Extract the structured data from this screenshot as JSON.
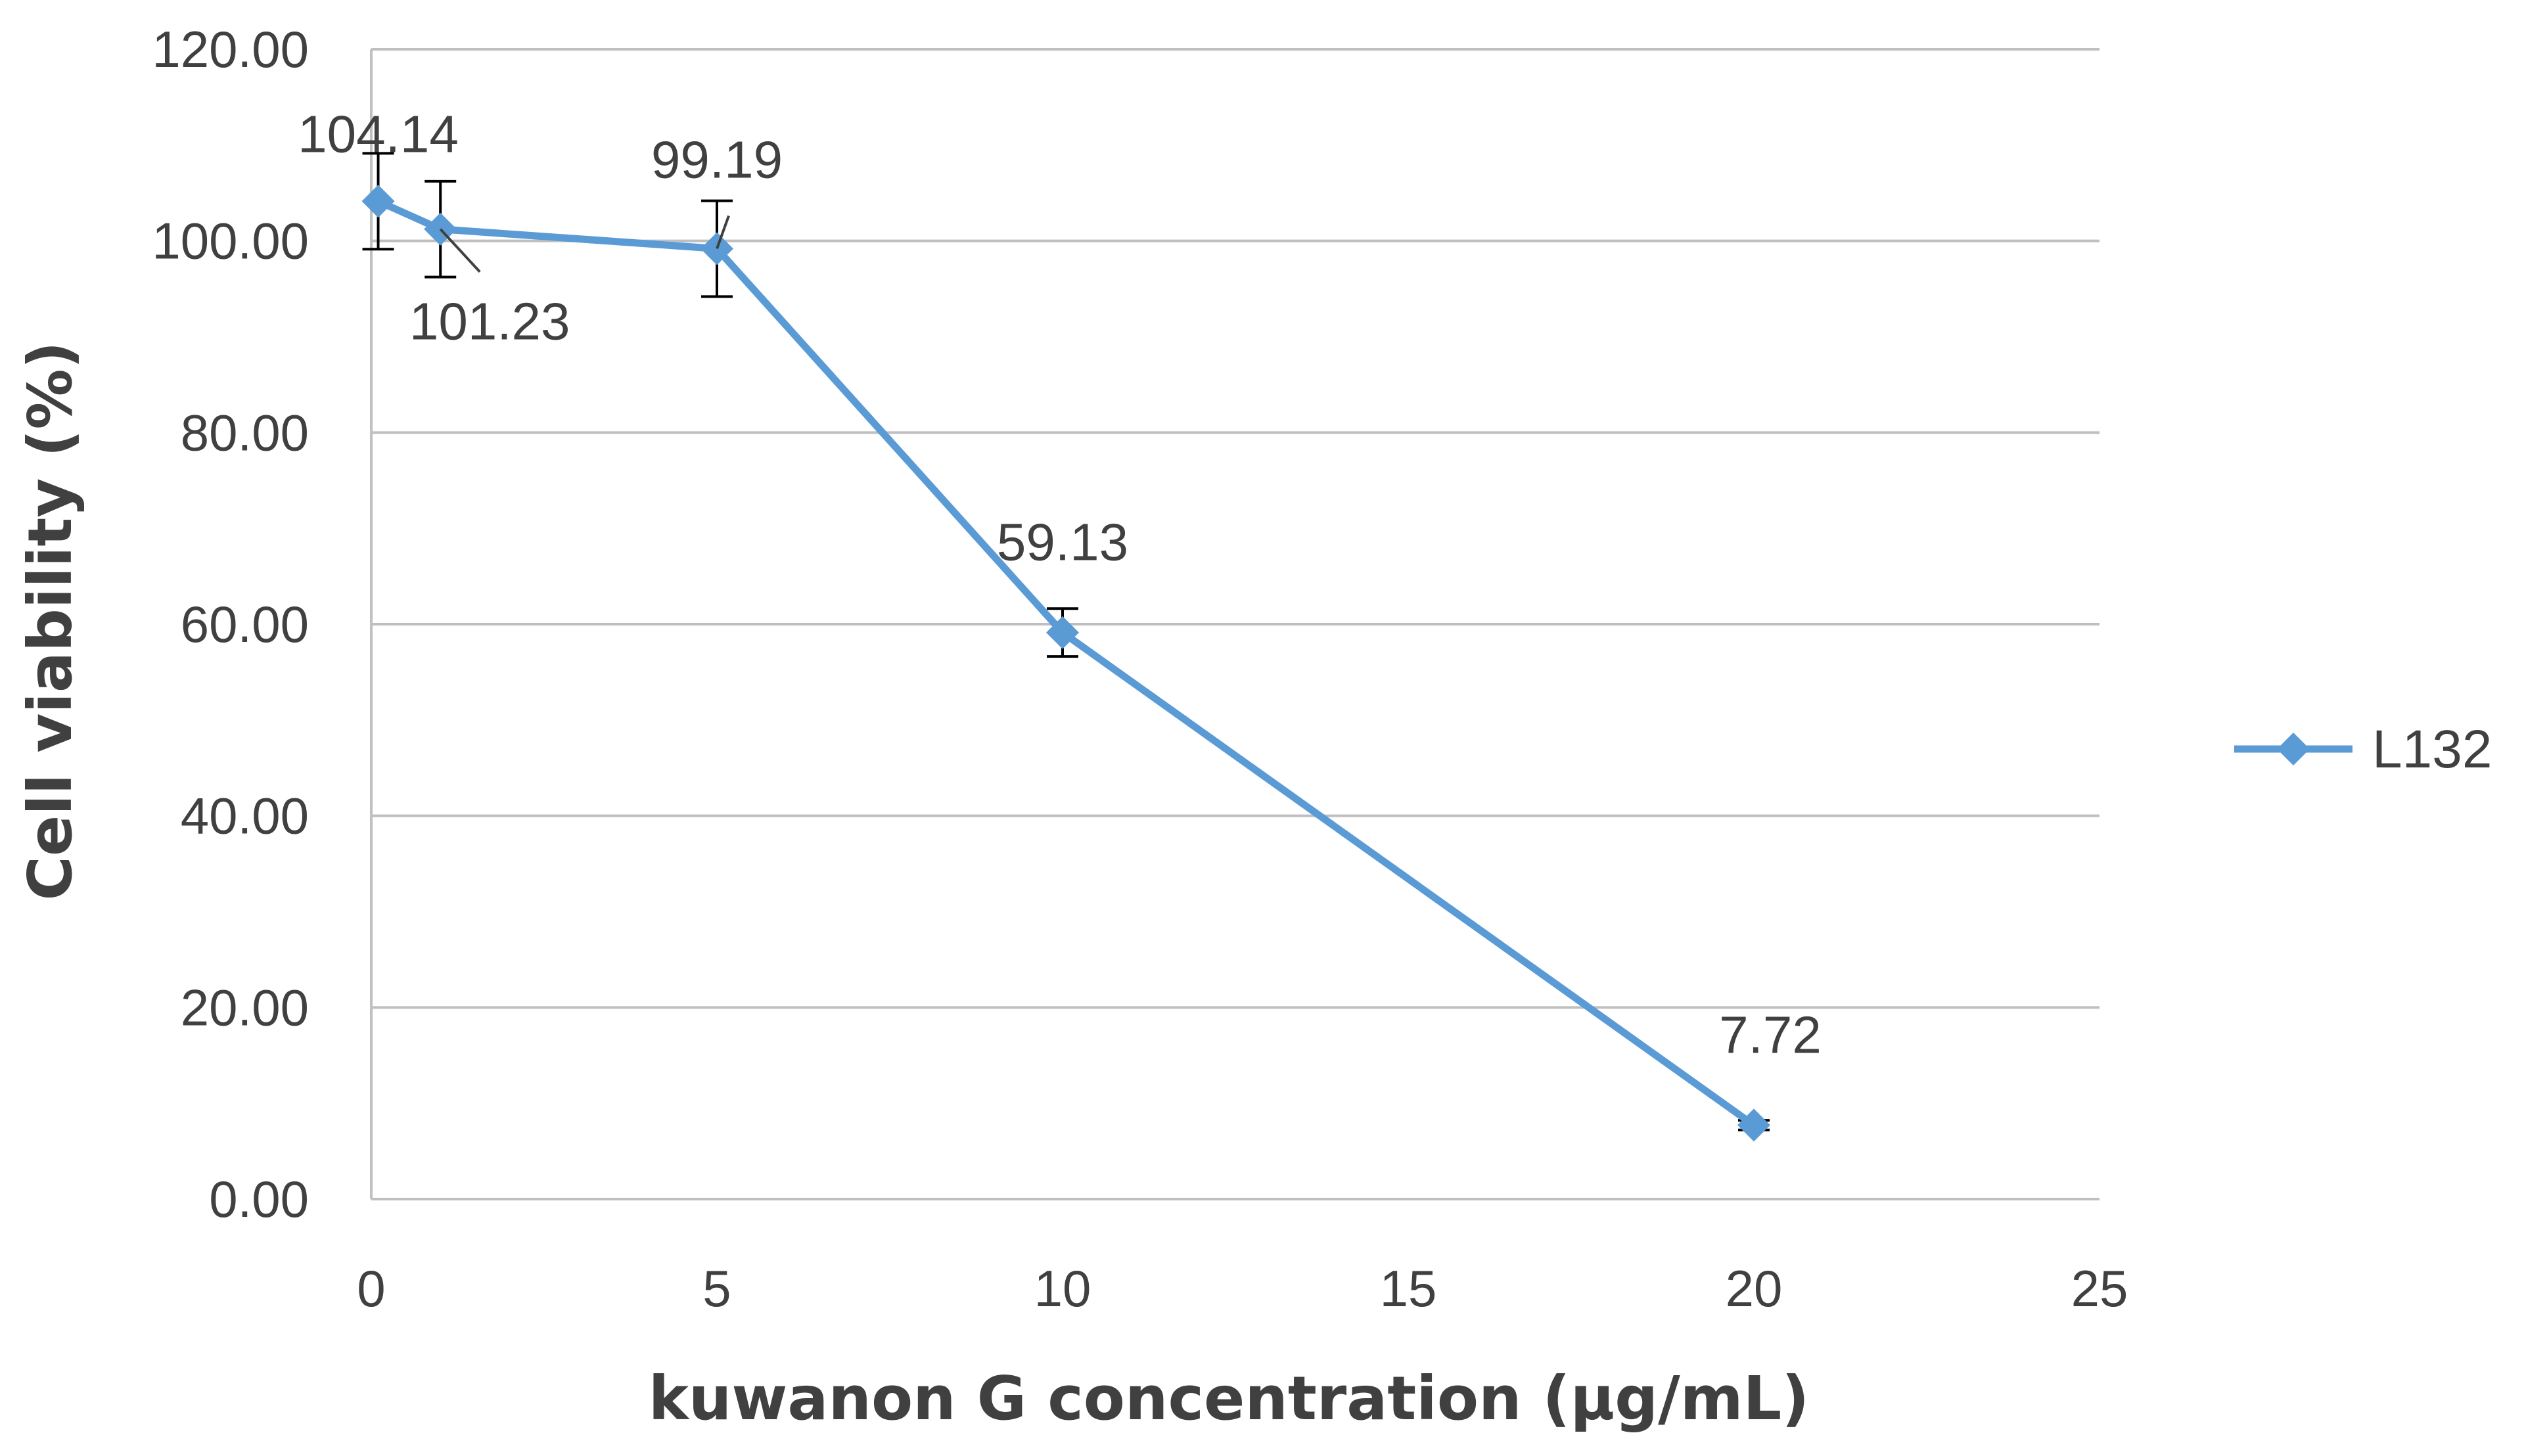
{
  "chart_data": {
    "type": "line",
    "xlabel": "kuwanon G concentration (µg/mL)",
    "ylabel": "Cell viability (%)",
    "xlim": [
      0,
      25
    ],
    "ylim": [
      0,
      120
    ],
    "x_ticks": [
      "0",
      "5",
      "10",
      "15",
      "20",
      "25"
    ],
    "y_ticks": [
      "0.00",
      "20.00",
      "40.00",
      "60.00",
      "80.00",
      "100.00",
      "120.00"
    ],
    "grid": "horizontal",
    "legend": "right",
    "series": [
      {
        "name": "L132",
        "color": "#5b9bd5",
        "marker": "diamond",
        "x": [
          0.1,
          1,
          5,
          10,
          20
        ],
        "y": [
          104.14,
          101.23,
          99.19,
          59.13,
          7.72
        ],
        "error": [
          5,
          5,
          5,
          2.5,
          0.5
        ],
        "labels": [
          "104.14",
          "101.23",
          "99.19",
          "59.13",
          "7.72"
        ]
      }
    ]
  }
}
